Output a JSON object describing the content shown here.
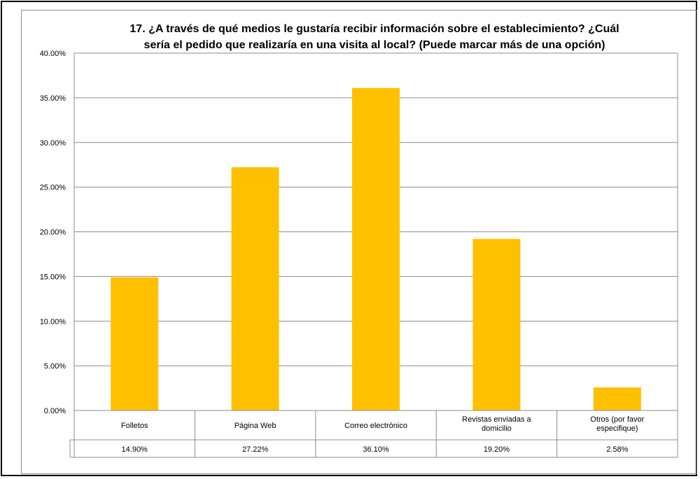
{
  "chart_data": {
    "type": "bar",
    "title_line1": "17. ¿A través de qué medios le gustaría recibir información sobre el establecimiento? ¿Cuál",
    "title_line2": "sería el pedido que realizaría en una visita al local? (Puede marcar más de una opción)",
    "categories": [
      "Folletos",
      "Página Web",
      "Correo electrónico",
      "Revistas enviadas a domicilio",
      "Otros (por favor especifique)"
    ],
    "values": [
      14.9,
      27.22,
      36.1,
      19.2,
      2.58
    ],
    "value_labels": [
      "14.90%",
      "27.22%",
      "36.10%",
      "19.20%",
      "2.58%"
    ],
    "y_ticks": [
      "0.00%",
      "5.00%",
      "10.00%",
      "15.00%",
      "20.00%",
      "25.00%",
      "30.00%",
      "35.00%",
      "40.00%"
    ],
    "ylim": [
      0,
      40
    ],
    "grid": true,
    "legend": "none",
    "bar_color": "#FFC000",
    "data_table": true
  }
}
